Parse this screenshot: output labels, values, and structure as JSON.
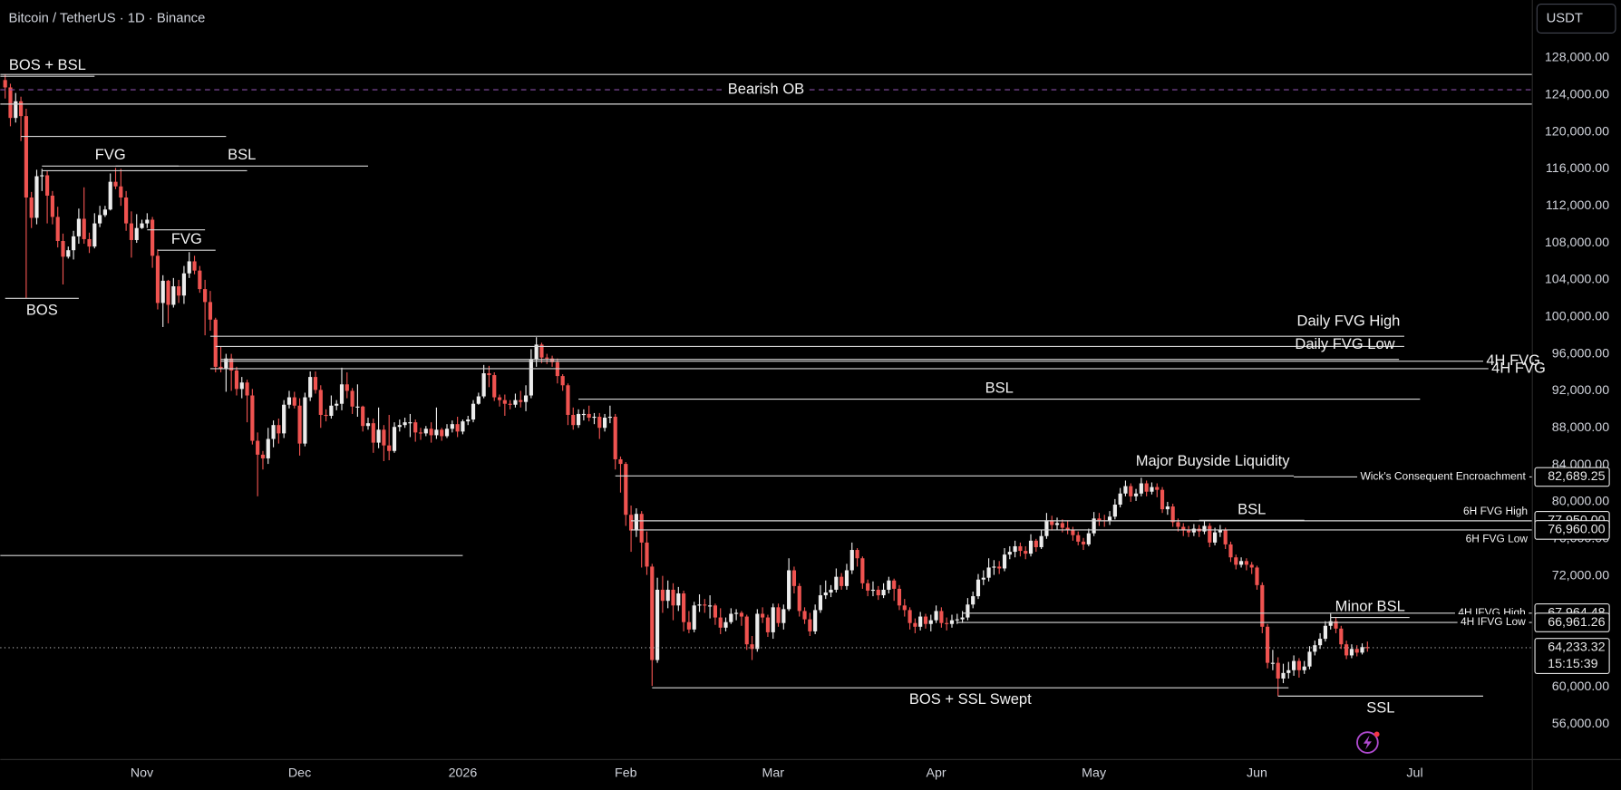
{
  "header": {
    "title": "Bitcoin / TetherUS · 1D · Binance",
    "currency": "USDT"
  },
  "chart_data": {
    "type": "candlestick",
    "first_open": 125600,
    "close": [
      124800,
      121500,
      123300,
      121700,
      112900,
      110700,
      115200,
      115300,
      113100,
      110800,
      108200,
      106500,
      107200,
      108700,
      110600,
      108400,
      107600,
      110100,
      111000,
      111600,
      114600,
      114100,
      112900,
      110100,
      108300,
      109600,
      110100,
      110500,
      106600,
      101500,
      103900,
      101300,
      103300,
      102300,
      104700,
      106000,
      105000,
      103000,
      101600,
      99700,
      94600,
      94400,
      95500,
      94200,
      92200,
      92900,
      91500,
      86600,
      85100,
      84700,
      86800,
      88300,
      87400,
      90500,
      91300,
      90400,
      86300,
      91300,
      93500,
      92100,
      89400,
      89300,
      90400,
      90600,
      92700,
      92000,
      90300,
      90300,
      88200,
      88500,
      86400,
      87800,
      86100,
      85500,
      88100,
      88300,
      88600,
      88600,
      87500,
      87400,
      87900,
      87200,
      87800,
      87100,
      87900,
      88400,
      87600,
      88700,
      88900,
      90600,
      91400,
      93900,
      93700,
      91300,
      91000,
      90600,
      90500,
      91000,
      90800,
      91500,
      95400,
      97000,
      95600,
      95500,
      95100,
      93600,
      92600,
      89400,
      88300,
      89500,
      89500,
      89100,
      89200,
      88000,
      89100,
      89200,
      84600,
      84100,
      78600,
      76900,
      78700,
      75600,
      73000,
      62900,
      70500,
      69300,
      70500,
      68800,
      70100,
      67000,
      66200,
      68800,
      68900,
      68800,
      68800,
      67500,
      66400,
      67000,
      67900,
      68000,
      67600,
      64600,
      64100,
      67900,
      67500,
      65900,
      68600,
      66900,
      68400,
      72600,
      70900,
      68200,
      67300,
      66000,
      68300,
      69900,
      70200,
      70500,
      71900,
      70900,
      72600,
      74800,
      73900,
      71200,
      70400,
      70500,
      69900,
      70500,
      71500,
      70600,
      68800,
      68300,
      66900,
      66500,
      67600,
      66800,
      67200,
      68200,
      66900,
      66800,
      67200,
      67300,
      67500,
      68900,
      69800,
      71600,
      71800,
      72900,
      73000,
      72800,
      74300,
      74600,
      75200,
      74700,
      74400,
      75800,
      75100,
      76300,
      78000,
      77500,
      77700,
      77200,
      77000,
      76400,
      75700,
      75400,
      76600,
      78200,
      78000,
      77900,
      78400,
      79700,
      80900,
      81700,
      80600,
      80900,
      82000,
      81100,
      81600,
      81300,
      79200,
      79500,
      77800,
      77300,
      76900,
      76700,
      77100,
      76800,
      77400,
      75600,
      76700,
      77000,
      75400,
      74000,
      73200,
      73600,
      73200,
      72900,
      71000,
      66500,
      62600,
      62600,
      60900,
      61500,
      61800,
      62800,
      61800,
      62200,
      63800,
      64500,
      65200,
      66600,
      67100,
      66300,
      64600,
      63400,
      64100,
      63700,
      64300,
      64233.32
    ],
    "high": [
      126200,
      125200,
      124200,
      123800,
      122500,
      113500,
      115900,
      116000,
      115800,
      113600,
      111900,
      109000,
      107600,
      109300,
      111700,
      114000,
      109100,
      111200,
      112000,
      112000,
      115500,
      116100,
      116000,
      113600,
      111400,
      111100,
      110500,
      111200,
      110800,
      107300,
      104500,
      104000,
      104200,
      104000,
      105500,
      107000,
      106600,
      105500,
      104000,
      102800,
      99900,
      96800,
      96000,
      96000,
      94600,
      93500,
      93200,
      92200,
      87500,
      85500,
      88000,
      88800,
      89000,
      91000,
      92000,
      91900,
      91200,
      91800,
      94100,
      94100,
      92600,
      90000,
      91500,
      91000,
      94500,
      94000,
      92300,
      92700,
      90400,
      89100,
      89000,
      90200,
      88300,
      89400,
      88600,
      88900,
      89100,
      89500,
      88900,
      88000,
      88200,
      88600,
      90200,
      88000,
      88400,
      88800,
      89200,
      88900,
      89300,
      91000,
      91800,
      94800,
      94700,
      94000,
      91600,
      91600,
      91000,
      91700,
      92000,
      92600,
      96500,
      97800,
      97200,
      96000,
      95800,
      95500,
      93800,
      92800,
      90200,
      90000,
      90000,
      90400,
      89600,
      89600,
      89500,
      90400,
      89500,
      84900,
      84300,
      79600,
      79300,
      79000,
      76800,
      73300,
      71800,
      72000,
      71500,
      71200,
      70800,
      70400,
      68200,
      69200,
      70000,
      69500,
      69900,
      69000,
      68500,
      67500,
      68500,
      68400,
      68200,
      67800,
      65500,
      68400,
      68600,
      67800,
      69000,
      69000,
      68900,
      73900,
      73000,
      71200,
      68600,
      68000,
      68900,
      71000,
      71500,
      71000,
      72800,
      72300,
      73300,
      75600,
      75000,
      74100,
      71600,
      71400,
      70900,
      71200,
      71900,
      71700,
      71000,
      69500,
      68600,
      67400,
      68100,
      67900,
      67800,
      68800,
      68600,
      67500,
      67800,
      67900,
      68200,
      69600,
      70300,
      72200,
      72600,
      73900,
      73700,
      73600,
      75000,
      75200,
      75800,
      75600,
      75200,
      76500,
      76000,
      77000,
      78800,
      78500,
      78300,
      78100,
      78000,
      77300,
      76800,
      76100,
      77100,
      78900,
      78800,
      78600,
      79000,
      80300,
      81500,
      82300,
      82000,
      81400,
      82600,
      82300,
      82100,
      82000,
      81600,
      80000,
      79800,
      78200,
      77700,
      77400,
      77600,
      77500,
      78000,
      77700,
      77200,
      77500,
      77200,
      75700,
      74300,
      74000,
      73900,
      73500,
      73100,
      71300,
      66800,
      64000,
      63200,
      62500,
      62700,
      63400,
      63100,
      62800,
      64400,
      65000,
      65800,
      67100,
      67900,
      67500,
      66600,
      65000,
      64600,
      64500,
      64700,
      64900
    ],
    "low": [
      123600,
      120600,
      121000,
      119000,
      102000,
      109600,
      110000,
      113600,
      110100,
      110000,
      107500,
      103500,
      106300,
      106200,
      107900,
      107900,
      106900,
      107400,
      109700,
      110800,
      111500,
      113800,
      112000,
      109300,
      106400,
      108000,
      109500,
      109600,
      105300,
      100800,
      98900,
      99300,
      101000,
      101500,
      101400,
      104200,
      104600,
      102600,
      98000,
      98500,
      94000,
      94000,
      91900,
      92000,
      91500,
      91200,
      88600,
      86200,
      80600,
      83500,
      84100,
      85900,
      86300,
      86900,
      90100,
      90100,
      85000,
      86000,
      90900,
      91700,
      88000,
      88700,
      89000,
      89900,
      89900,
      91200,
      89500,
      89200,
      87600,
      87800,
      85300,
      85800,
      84400,
      84500,
      85300,
      87600,
      88000,
      87000,
      86500,
      86700,
      87100,
      86400,
      86800,
      86600,
      86900,
      87500,
      87000,
      87300,
      88300,
      88600,
      90500,
      91200,
      92400,
      90900,
      90300,
      89300,
      90000,
      90200,
      90200,
      89800,
      91200,
      94600,
      95000,
      94900,
      94600,
      92800,
      92000,
      88300,
      87800,
      88000,
      88800,
      88700,
      88400,
      86800,
      87600,
      88500,
      83500,
      81000,
      77400,
      74600,
      76200,
      72900,
      72100,
      60100,
      62600,
      68000,
      68500,
      67200,
      68200,
      66000,
      65800,
      65900,
      68100,
      68000,
      67400,
      66700,
      65700,
      66000,
      66800,
      67200,
      66600,
      64000,
      62900,
      63800,
      66900,
      65400,
      65200,
      66500,
      66200,
      68200,
      70100,
      67600,
      66800,
      65500,
      65700,
      68000,
      69500,
      69700,
      70200,
      70500,
      70500,
      72200,
      73000,
      70600,
      69800,
      69800,
      69400,
      69600,
      70100,
      69300,
      68300,
      67600,
      66200,
      65800,
      66100,
      66300,
      66000,
      66900,
      66400,
      66100,
      66400,
      66800,
      66900,
      67200,
      68500,
      69500,
      71000,
      71400,
      72100,
      72200,
      72500,
      73800,
      74000,
      74100,
      73800,
      74100,
      74600,
      74900,
      76000,
      76900,
      77000,
      76700,
      76500,
      75800,
      75300,
      74800,
      75200,
      76300,
      77400,
      77300,
      77500,
      78100,
      79400,
      80600,
      80000,
      80100,
      80600,
      80600,
      80800,
      80500,
      78800,
      78600,
      77300,
      76800,
      76300,
      76200,
      76300,
      76200,
      76500,
      75100,
      75300,
      76200,
      74900,
      73500,
      72700,
      72900,
      72600,
      72200,
      70500,
      65800,
      62000,
      61800,
      59000,
      60400,
      60900,
      61200,
      61000,
      61400,
      61900,
      63400,
      64100,
      64900,
      66200,
      65800,
      64100,
      63000,
      63100,
      63300,
      63500,
      63800
    ],
    "up_color": "#ececec",
    "down_color": "#ef5350",
    "line_color": "#d6d6d6",
    "xlim": [
      -0.92,
      290.25
    ],
    "xticks": [
      {
        "value": 26,
        "label": "Nov"
      },
      {
        "value": 56,
        "label": "Dec"
      },
      {
        "value": 87,
        "label": "2026"
      },
      {
        "value": 118,
        "label": "Feb"
      },
      {
        "value": 146,
        "label": "Mar"
      },
      {
        "value": 177,
        "label": "Apr"
      },
      {
        "value": 207,
        "label": "May"
      },
      {
        "value": 238,
        "label": "Jun"
      },
      {
        "value": 268,
        "label": "Jul"
      }
    ],
    "ylim": [
      52200,
      134250
    ],
    "yticks": [
      {
        "value": 56000,
        "label": "56,000.00"
      },
      {
        "value": 60000,
        "label": "60,000.00"
      },
      {
        "value": 64000,
        "label": "64,000.00"
      },
      {
        "value": 68000,
        "label": "68,000.00"
      },
      {
        "value": 72000,
        "label": "72,000.00"
      },
      {
        "value": 76000,
        "label": "76,000.00"
      },
      {
        "value": 80000,
        "label": "80,000.00"
      },
      {
        "value": 84000,
        "label": "84,000.00"
      },
      {
        "value": 88000,
        "label": "88,000.00"
      },
      {
        "value": 92000,
        "label": "92,000.00"
      },
      {
        "value": 96000,
        "label": "96,000.00"
      },
      {
        "value": 100000,
        "label": "100,000.00"
      },
      {
        "value": 104000,
        "label": "104,000.00"
      },
      {
        "value": 108000,
        "label": "108,000.00"
      },
      {
        "value": 112000,
        "label": "112,000.00"
      },
      {
        "value": 116000,
        "label": "116,000.00"
      },
      {
        "value": 120000,
        "label": "120,000.00"
      },
      {
        "value": 124000,
        "label": "124,000.00"
      },
      {
        "value": 128000,
        "label": "128,000.00"
      }
    ],
    "annotations": [
      {
        "price": 126200,
        "extend": "both"
      },
      {
        "label": "Bearish OB",
        "price": 124550,
        "extend": "both",
        "dashed": true,
        "color": "#8a4fa8",
        "label_at": "center"
      },
      {
        "price": 123000,
        "extend": "both"
      },
      {
        "label": "BOS + BSL",
        "price": 126000,
        "extend": "left",
        "to": 17,
        "label_at": "above"
      },
      {
        "price": 119500,
        "from": 3,
        "to": 42
      },
      {
        "label": "FVG",
        "price": 116300,
        "from": 7,
        "to": 33,
        "label_at": "above"
      },
      {
        "price": 115800,
        "from": 7,
        "to": 46
      },
      {
        "label": "BSL",
        "price": 116300,
        "from": 21,
        "to": 69,
        "label_at": "above"
      },
      {
        "price": 109400,
        "from": 27,
        "to": 38
      },
      {
        "label": "FVG",
        "price": 107200,
        "from": 29,
        "to": 40,
        "label_at": "above"
      },
      {
        "label": "BOS",
        "price": 102000,
        "from": 0,
        "to": 14,
        "label_at": "below"
      },
      {
        "label": "Daily FVG High",
        "price": 97900,
        "from": 39,
        "to": 266,
        "label_at": "above-end"
      },
      {
        "price": 96800,
        "from": 40,
        "to": 266
      },
      {
        "label": "Daily FVG Low",
        "price": 95400,
        "from": 41,
        "to": 265,
        "label_at": "above-end"
      },
      {
        "label": "4H FVG",
        "price": 95200,
        "from": 41,
        "to": 281,
        "label_at": "after"
      },
      {
        "label": "4H FVG",
        "price": 94400,
        "from": 39,
        "to": 282,
        "label_at": "after"
      },
      {
        "label": "BSL",
        "price": 91100,
        "from": 109,
        "to": 269,
        "label_at": "above"
      },
      {
        "label": "Major Buyside Liquidity",
        "price": 82800,
        "from": 116,
        "to": 245,
        "label_at": "above-end"
      },
      {
        "label": "Wick's Consequent Encroachment",
        "price": {
          "value": 82689.25,
          "label": "82,689.25"
        },
        "from": 245,
        "extend": "right",
        "label_at": "end",
        "size": "small"
      },
      {
        "label": "BSL",
        "price": 78000,
        "from": 227,
        "to": 247,
        "label_at": "above"
      },
      {
        "label": "6H FVG High",
        "price": {
          "value": 77950,
          "label": "77,950.00"
        },
        "from": 119,
        "extend": "right",
        "label_at": "above-end",
        "size": "small"
      },
      {
        "label": "6H FVG Low",
        "price": {
          "value": 76960,
          "label": "76,960.00"
        },
        "from": 119,
        "extend": "right",
        "label_at": "below-end",
        "size": "small"
      },
      {
        "price": 74200,
        "extend": "left",
        "to": 87
      },
      {
        "label": "Minor BSL",
        "price": 67500,
        "from": 252,
        "to": 267,
        "label_at": "above"
      },
      {
        "label": "4H IFVG High",
        "price": {
          "value": 67964.48,
          "label": "67,964.48"
        },
        "from": 182,
        "extend": "right",
        "label_at": "end",
        "size": "small"
      },
      {
        "label": "4H IFVG Low",
        "price": {
          "value": 66961.26,
          "label": "66,961.26"
        },
        "from": 181,
        "extend": "right",
        "label_at": "end",
        "size": "small"
      },
      {
        "label": "BOS + SSL Swept",
        "price": 59900,
        "from": 123,
        "to": 244,
        "label_at": "below"
      },
      {
        "label": "SSL",
        "price": 59000,
        "from": 242,
        "to": 281,
        "label_at": "below"
      }
    ],
    "last_price": {
      "value": 64233.32,
      "label": "64,233.32"
    },
    "countdown": "15:15:39"
  }
}
